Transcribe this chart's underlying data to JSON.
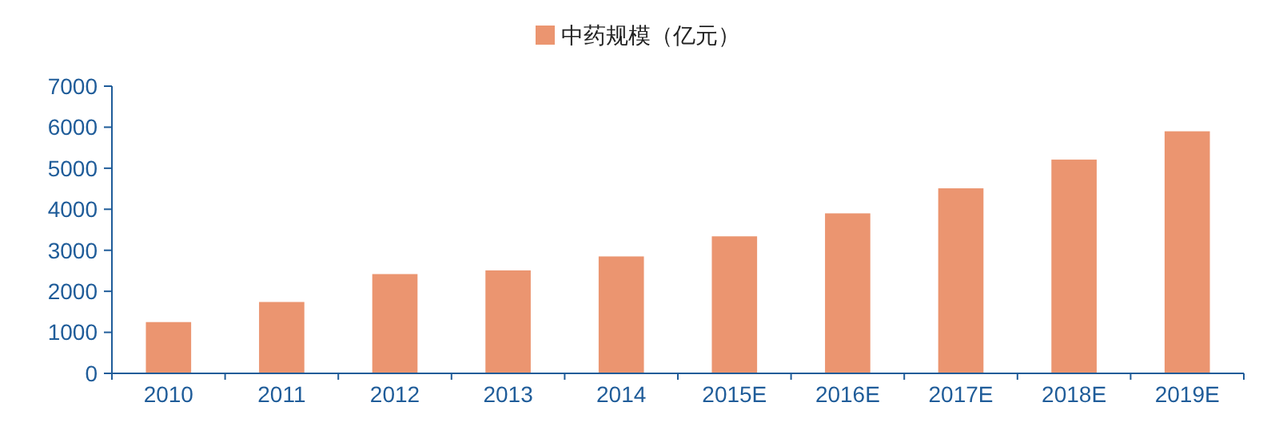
{
  "chart_data": {
    "type": "bar",
    "categories": [
      "2010",
      "2011",
      "2012",
      "2013",
      "2014",
      "2015E",
      "2016E",
      "2017E",
      "2018E",
      "2019E"
    ],
    "series": [
      {
        "name": "中药规模（亿元）",
        "color": "#eb9570",
        "values": [
          1250,
          1740,
          2420,
          2510,
          2850,
          3340,
          3900,
          4510,
          5210,
          5900
        ]
      }
    ],
    "ylim": [
      0,
      7000
    ],
    "yticks": [
      0,
      1000,
      2000,
      3000,
      4000,
      5000,
      6000,
      7000
    ],
    "legend": "top",
    "grid": false
  }
}
